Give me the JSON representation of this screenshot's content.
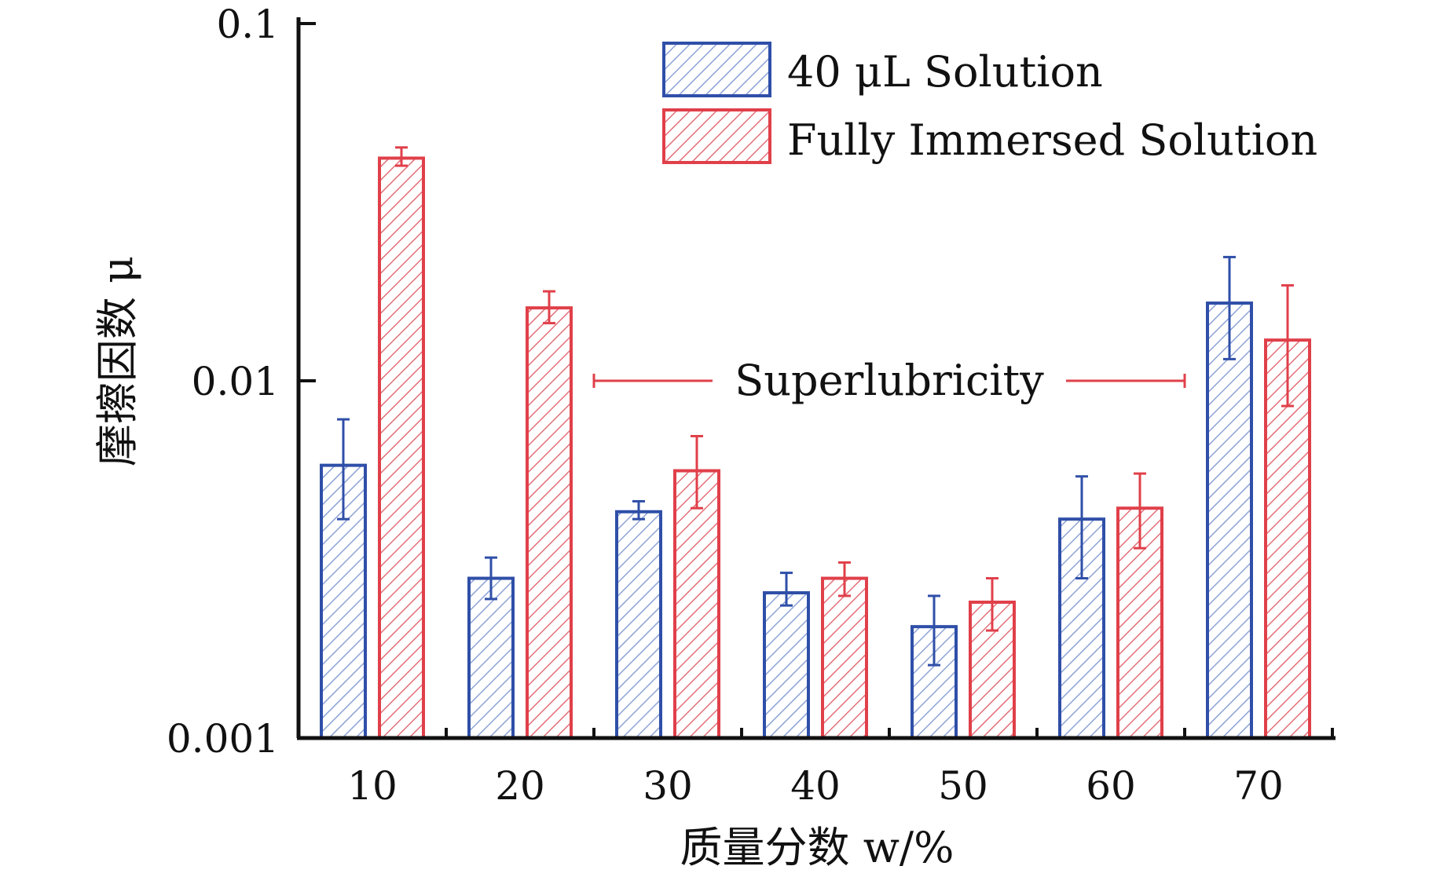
{
  "chart_data": {
    "type": "bar",
    "yscale": "log",
    "ylim": [
      0.001,
      0.1
    ],
    "yticks": [
      "0.001",
      "0.01",
      "0.1"
    ],
    "xlabel": "质量分数 w/%",
    "ylabel": "摩擦因数 μ",
    "categories": [
      "10",
      "20",
      "30",
      "40",
      "50",
      "60",
      "70"
    ],
    "legend_position": "top-right",
    "series": [
      {
        "name": "40 μL Solution",
        "color": "#2f4fa8",
        "values": [
          0.0058,
          0.0028,
          0.0043,
          0.00255,
          0.00205,
          0.0041,
          0.0165
        ],
        "err_low": [
          0.0041,
          0.00245,
          0.0041,
          0.00235,
          0.0016,
          0.0028,
          0.0115
        ],
        "err_high": [
          0.0078,
          0.0032,
          0.0046,
          0.0029,
          0.0025,
          0.0054,
          0.0222
        ]
      },
      {
        "name": "Fully Immersed Solution",
        "color": "#e0404a",
        "values": [
          0.042,
          0.016,
          0.0056,
          0.0028,
          0.0024,
          0.0044,
          0.013
        ],
        "err_low": [
          0.04,
          0.0145,
          0.0044,
          0.0025,
          0.002,
          0.0034,
          0.0085
        ],
        "err_high": [
          0.045,
          0.0178,
          0.007,
          0.0031,
          0.0028,
          0.0055,
          0.0185
        ]
      }
    ],
    "annotations": [
      {
        "text": "Superlubricity",
        "y": 0.01,
        "x_from": "30",
        "x_to": "60"
      }
    ]
  }
}
